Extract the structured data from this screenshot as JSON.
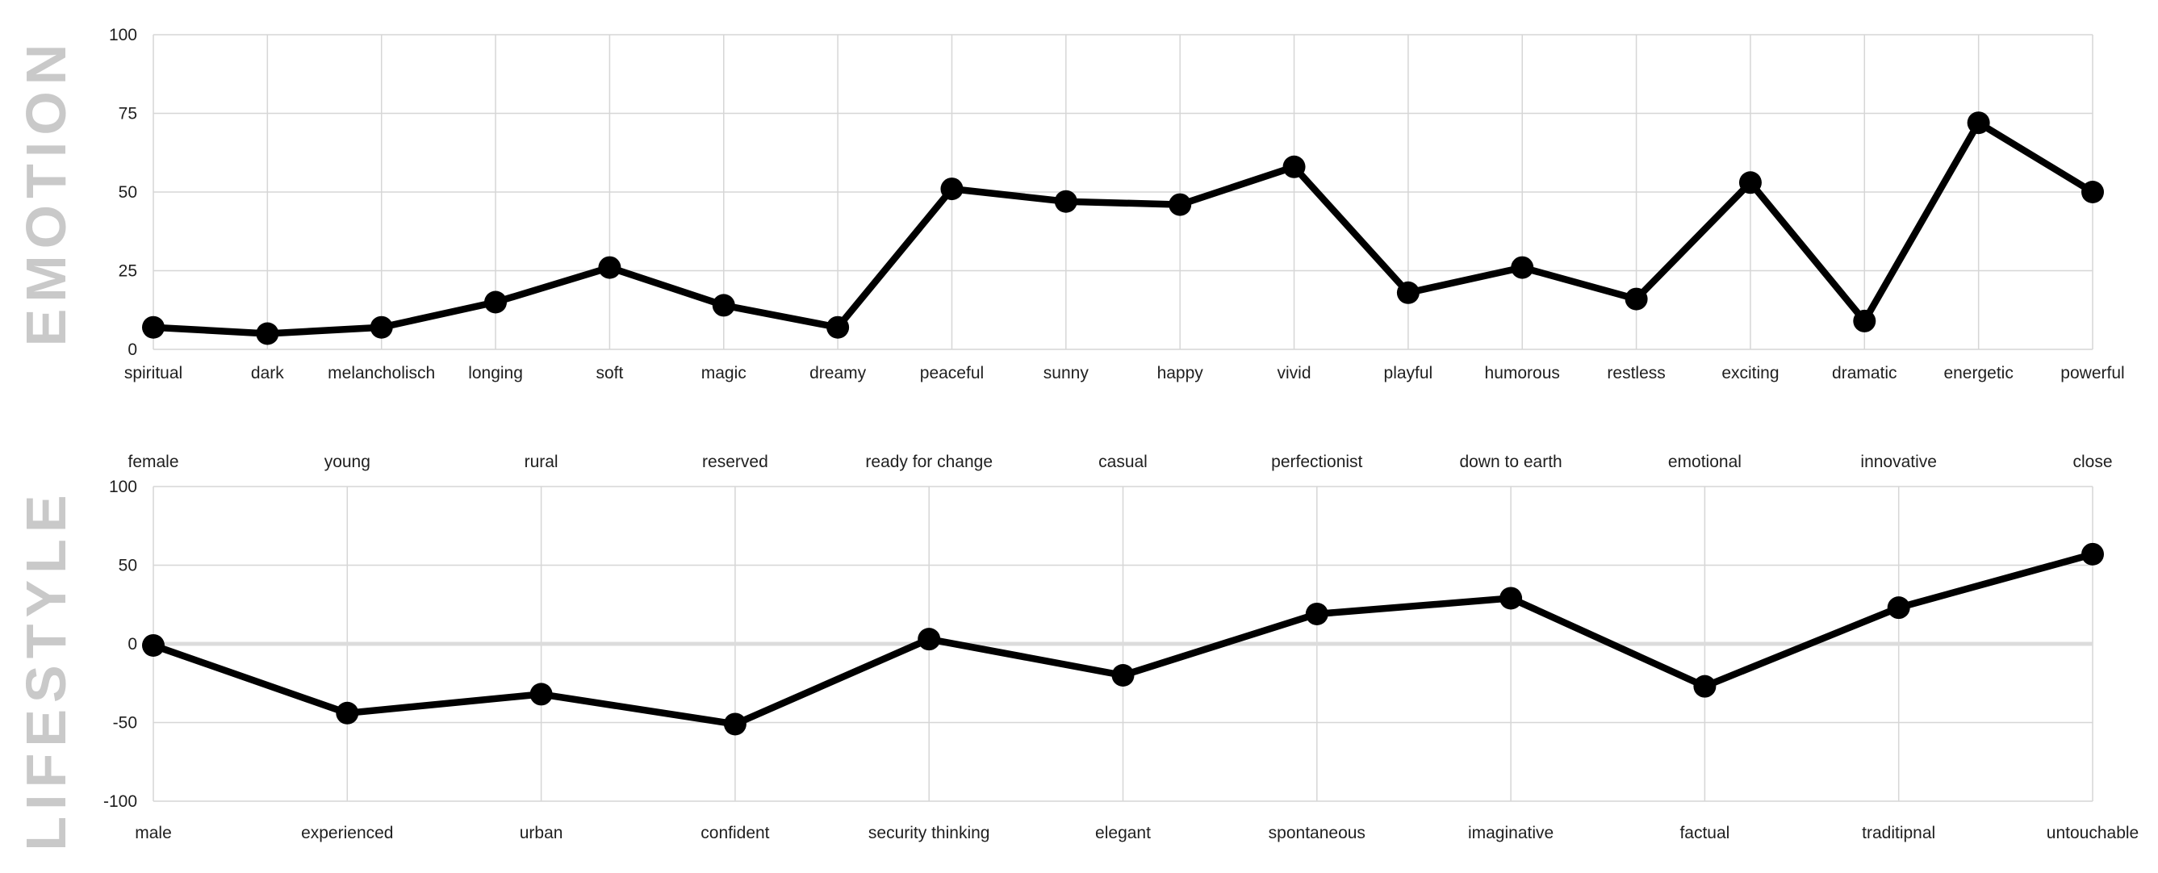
{
  "colors": {
    "background": "#ffffff",
    "grid": "#d6d6d6",
    "zero_line": "#dcdcdc",
    "series_line": "#000000",
    "series_point": "#000000",
    "label_text": "#1f1f1f",
    "section_title_text": "#c9c9c9"
  },
  "chart_data": [
    {
      "id": "emotion",
      "type": "line",
      "title": "EMOTION",
      "legend_position": "none",
      "grid": true,
      "categories": [
        "spiritual",
        "dark",
        "melancholisch",
        "longing",
        "soft",
        "magic",
        "dreamy",
        "peaceful",
        "sunny",
        "happy",
        "vivid",
        "playful",
        "humorous",
        "restless",
        "exciting",
        "dramatic",
        "energetic",
        "powerful"
      ],
      "values": [
        7,
        5,
        7,
        15,
        26,
        14,
        7,
        51,
        47,
        46,
        58,
        18,
        26,
        16,
        53,
        9,
        72,
        50
      ],
      "ylim": [
        0,
        100
      ],
      "yticks": [
        0,
        25,
        50,
        75,
        100
      ],
      "xlabel": "",
      "ylabel": ""
    },
    {
      "id": "lifestyle",
      "type": "line",
      "title": "LIFESTYLE",
      "legend_position": "none",
      "grid": true,
      "zero_line_emphasis": true,
      "categories_top": [
        "female",
        "young",
        "rural",
        "reserved",
        "ready for change",
        "casual",
        "perfectionist",
        "down to earth",
        "emotional",
        "innovative",
        "close"
      ],
      "categories_bottom": [
        "male",
        "experienced",
        "urban",
        "confident",
        "security thinking",
        "elegant",
        "spontaneous",
        "imaginative",
        "factual",
        "traditipnal",
        "untouchable"
      ],
      "values": [
        -1,
        -44,
        -32,
        -51,
        3,
        -20,
        19,
        29,
        -27,
        23,
        57
      ],
      "ylim": [
        -100,
        100
      ],
      "yticks": [
        -100,
        -50,
        0,
        50,
        100
      ],
      "xlabel": "",
      "ylabel": ""
    }
  ]
}
